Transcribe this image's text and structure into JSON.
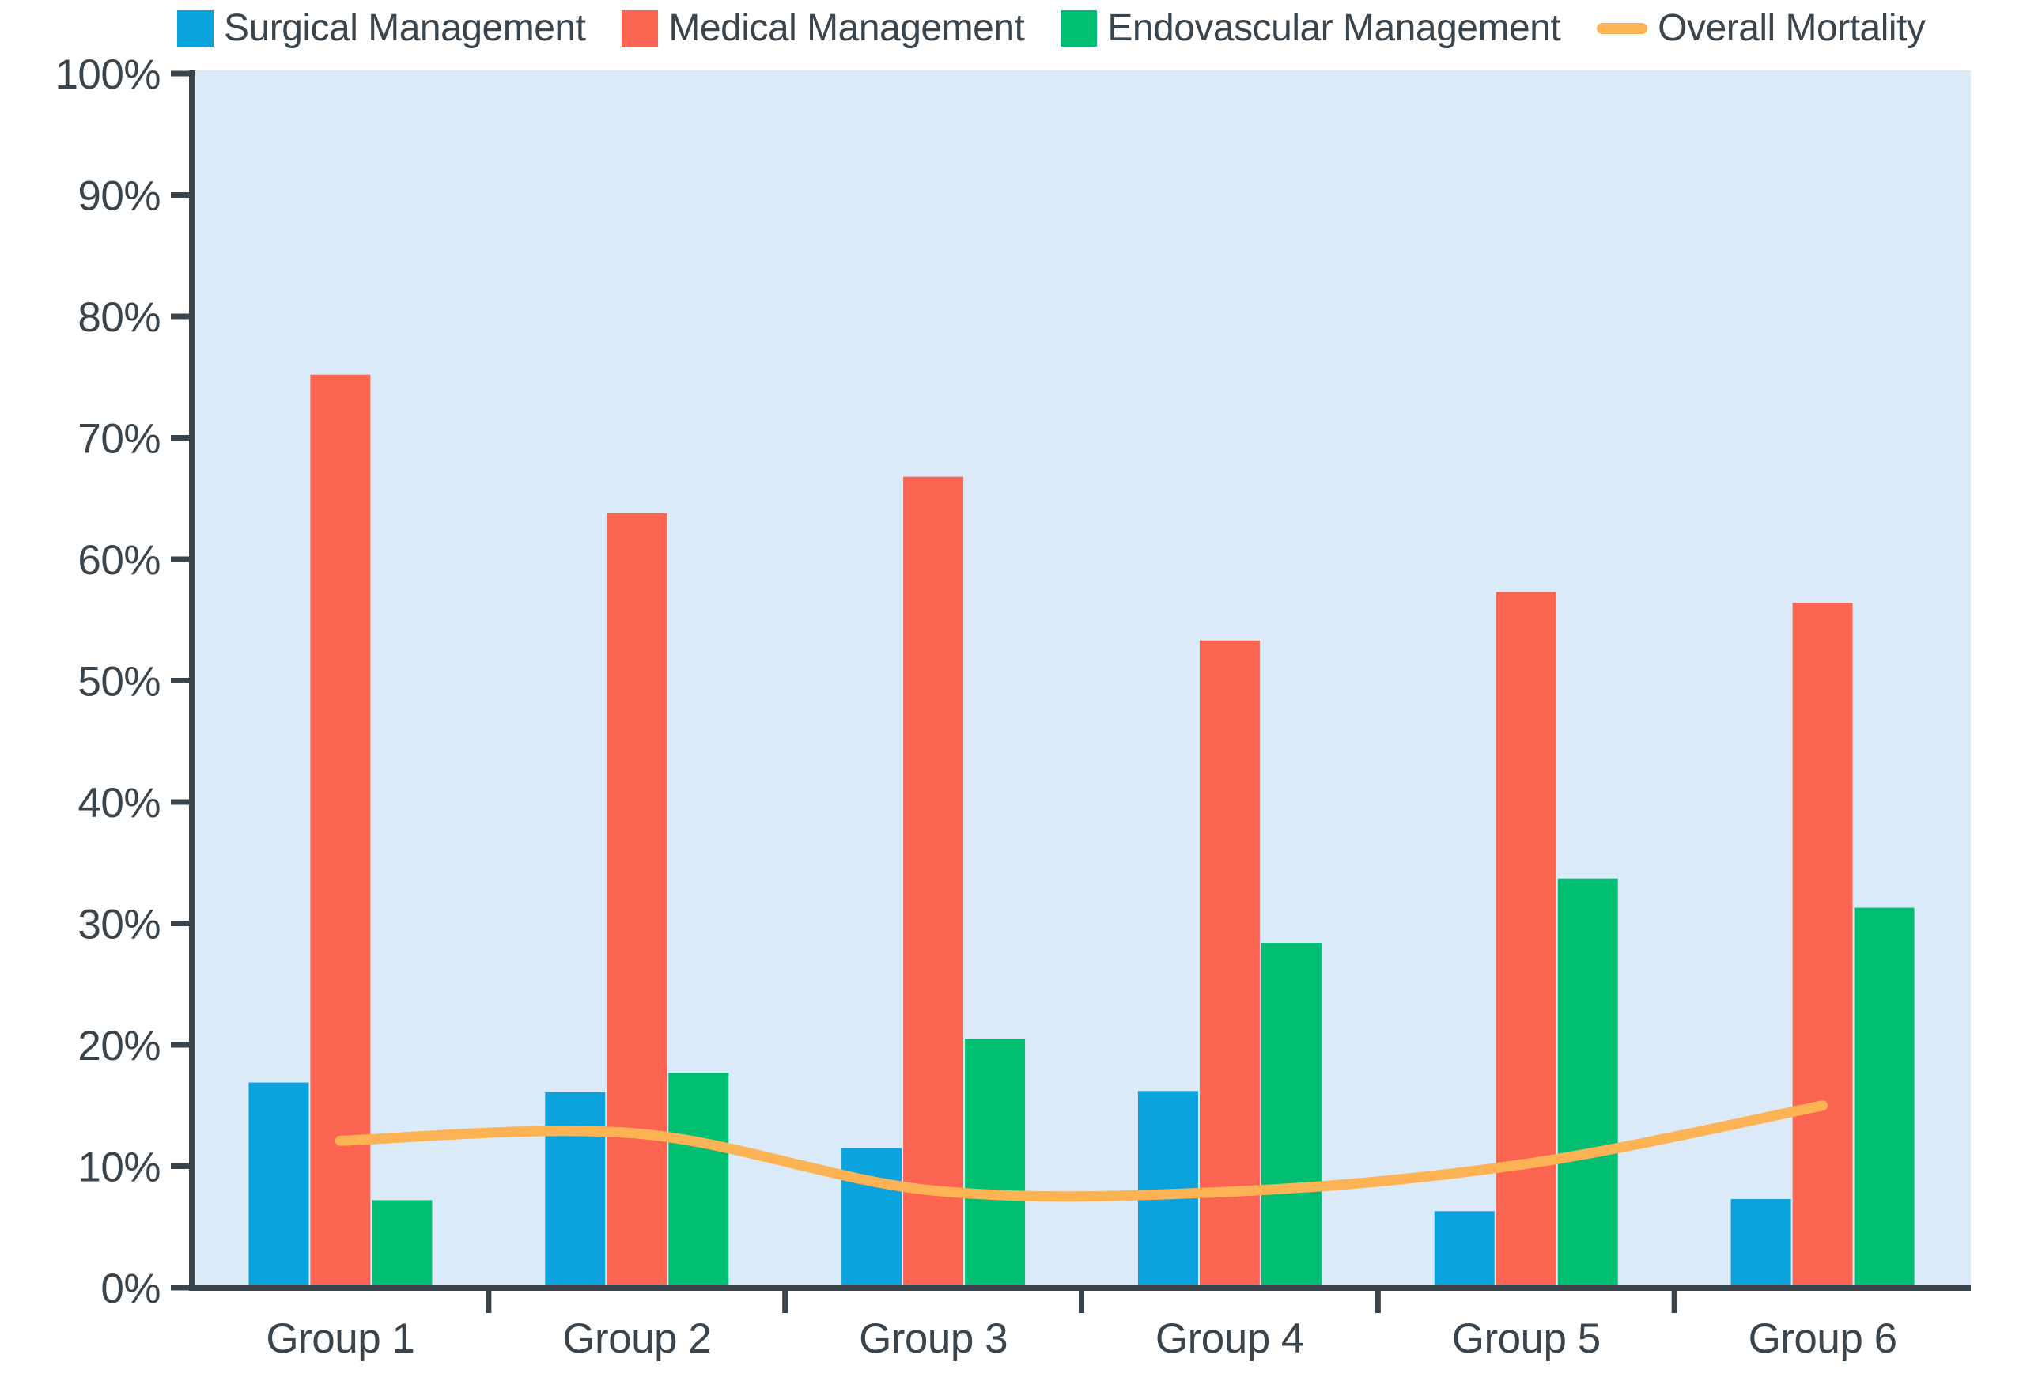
{
  "chart_data": {
    "type": "bar+line",
    "categories": [
      "Group 1",
      "Group 2",
      "Group 3",
      "Group 4",
      "Group 5",
      "Group 6"
    ],
    "bar_series": [
      {
        "name": "Surgical Management",
        "color": "#0aa3dd",
        "values": [
          16.9,
          16.1,
          11.5,
          16.2,
          6.3,
          7.3
        ]
      },
      {
        "name": "Medical Management",
        "color": "#fa6450",
        "values": [
          75.2,
          63.8,
          66.8,
          53.3,
          57.3,
          56.4
        ]
      },
      {
        "name": "Endovascular Management",
        "color": "#00bf72",
        "values": [
          7.2,
          17.7,
          20.5,
          28.4,
          33.7,
          31.3
        ]
      }
    ],
    "line_series": [
      {
        "name": "Overall Mortality",
        "color": "#fdb254",
        "values": [
          12.1,
          12.7,
          8.0,
          7.9,
          10.2,
          15.0
        ]
      }
    ],
    "y_axis": {
      "min": 0,
      "max": 100,
      "step": 10,
      "unit": "%",
      "tick_labels": [
        "0%",
        "10%",
        "20%",
        "30%",
        "40%",
        "50%",
        "60%",
        "70%",
        "80%",
        "90%",
        "100%"
      ]
    },
    "x_axis": {
      "tick_labels": [
        "Group 1",
        "Group 2",
        "Group 3",
        "Group 4",
        "Group 5",
        "Group 6"
      ]
    },
    "legend": {
      "position": "top",
      "entries": [
        {
          "label": "Surgical Management",
          "color": "#0aa3dd",
          "marker": "square"
        },
        {
          "label": "Medical Management",
          "color": "#fa6450",
          "marker": "square"
        },
        {
          "label": "Endovascular Management",
          "color": "#00bf72",
          "marker": "square"
        },
        {
          "label": "Overall Mortality",
          "color": "#fdb254",
          "marker": "line"
        }
      ]
    },
    "style": {
      "plot_bg": "#dbeaf8",
      "axis_color": "#39444c",
      "text_color": "#3a444c",
      "grid": false,
      "legend_position": "top"
    }
  }
}
